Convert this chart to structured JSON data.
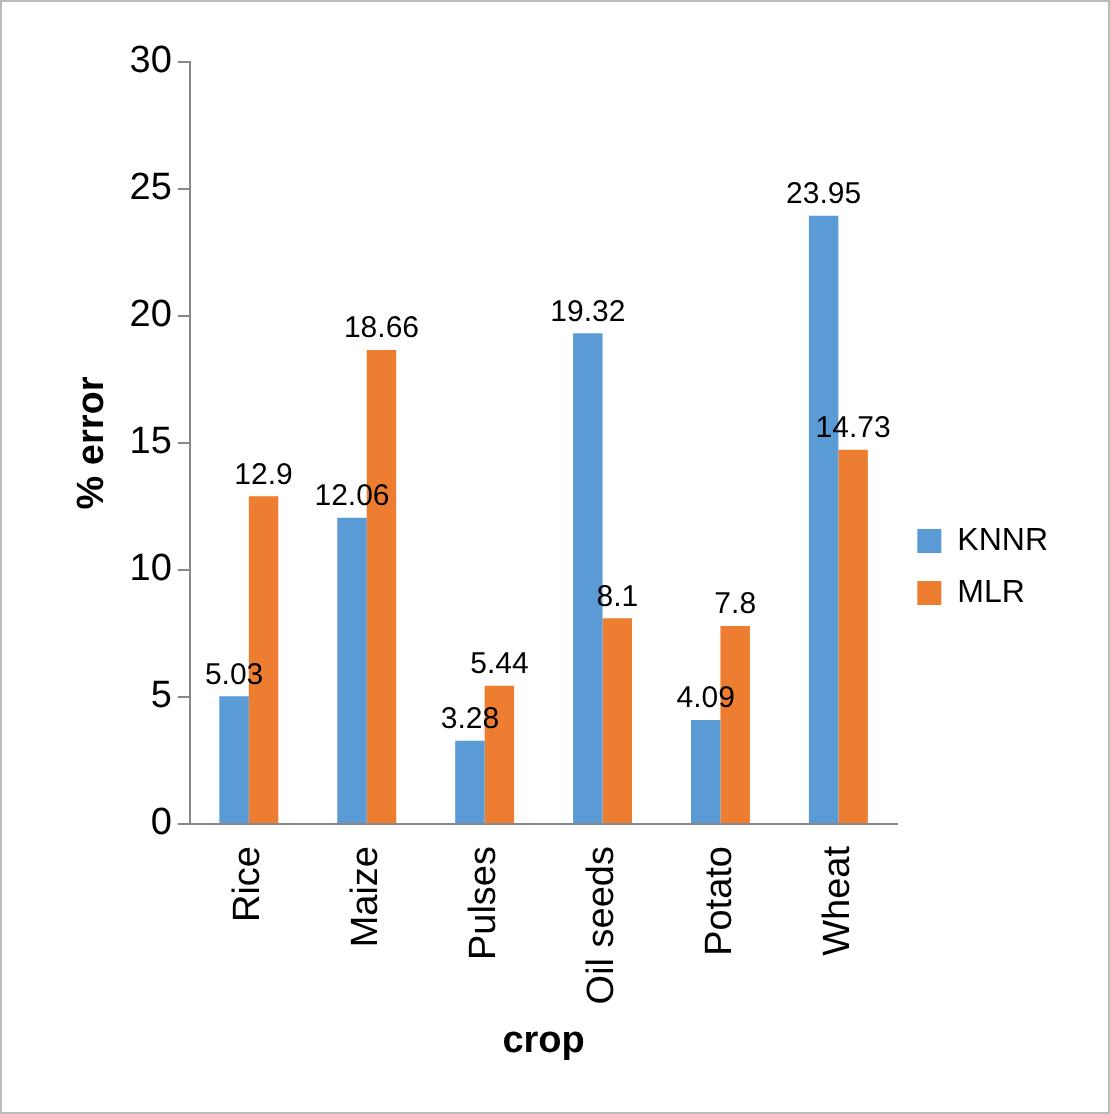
{
  "chart_data": {
    "type": "bar",
    "xlabel": "crop",
    "ylabel": "% error",
    "categories": [
      "Rice",
      "Maize",
      "Pulses",
      "Oil seeds",
      "Potato",
      "Wheat"
    ],
    "series": [
      {
        "name": "KNNR",
        "color": "#5b9bd5",
        "values": [
          5.03,
          12.06,
          3.28,
          19.32,
          4.09,
          23.95
        ]
      },
      {
        "name": "MLR",
        "color": "#ed7d31",
        "values": [
          12.9,
          18.66,
          5.44,
          8.1,
          7.8,
          14.73
        ]
      }
    ],
    "ylim": [
      0,
      30
    ],
    "yticks": [
      0,
      5,
      10,
      15,
      20,
      25,
      30
    ],
    "grid": false,
    "legend": "right",
    "data_labels": true
  }
}
